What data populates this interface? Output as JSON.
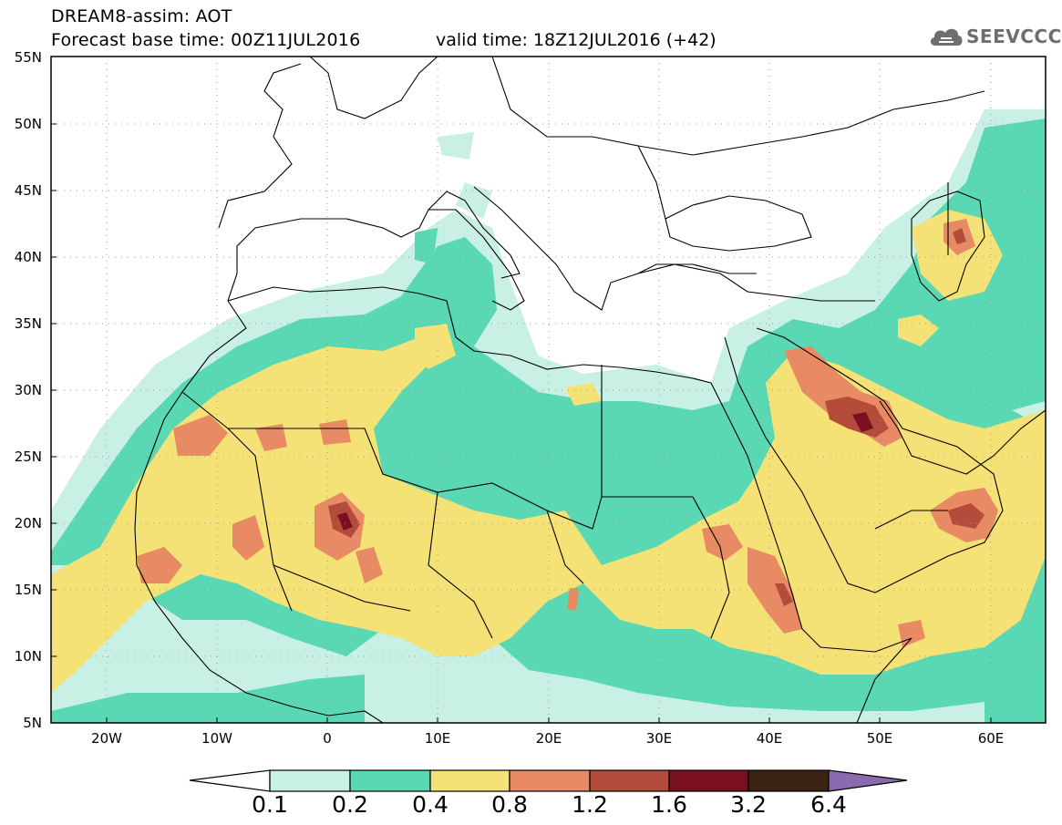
{
  "header": {
    "title_line1": "DREAM8-assim: AOT",
    "title_line2": "Forecast base time: 00Z11JUL2016",
    "valid_time": "valid time: 18Z12JUL2016 (+42)"
  },
  "logo": {
    "text": "SEEVCCC",
    "icon": "cloud-icon"
  },
  "map": {
    "lat_labels": [
      "55N",
      "50N",
      "45N",
      "40N",
      "35N",
      "30N",
      "25N",
      "20N",
      "15N",
      "10N",
      "5N"
    ],
    "lon_labels": [
      "20W",
      "10W",
      "0",
      "10E",
      "20E",
      "30E",
      "40E",
      "50E",
      "60E"
    ],
    "extent": {
      "lon_min": -25,
      "lon_max": 65,
      "lat_min": 5,
      "lat_max": 55
    }
  },
  "legend": {
    "thresholds": [
      "0.1",
      "0.2",
      "0.4",
      "0.8",
      "1.2",
      "1.6",
      "3.2",
      "6.4"
    ],
    "colors": [
      "#c8f0e4",
      "#5ad7b3",
      "#f5e277",
      "#e88a63",
      "#b44c3c",
      "#7a0f22",
      "#3b2414",
      "#8b6bb0"
    ],
    "low_color": "#ffffff"
  },
  "colors": {
    "aot_0_1": "#c8f0e4",
    "aot_0_2": "#5ad7b3",
    "aot_0_4": "#f5e277",
    "aot_0_8": "#e88a63",
    "aot_1_2": "#b44c3c",
    "aot_1_6": "#7a0f22",
    "aot_3_2": "#3b2414"
  }
}
